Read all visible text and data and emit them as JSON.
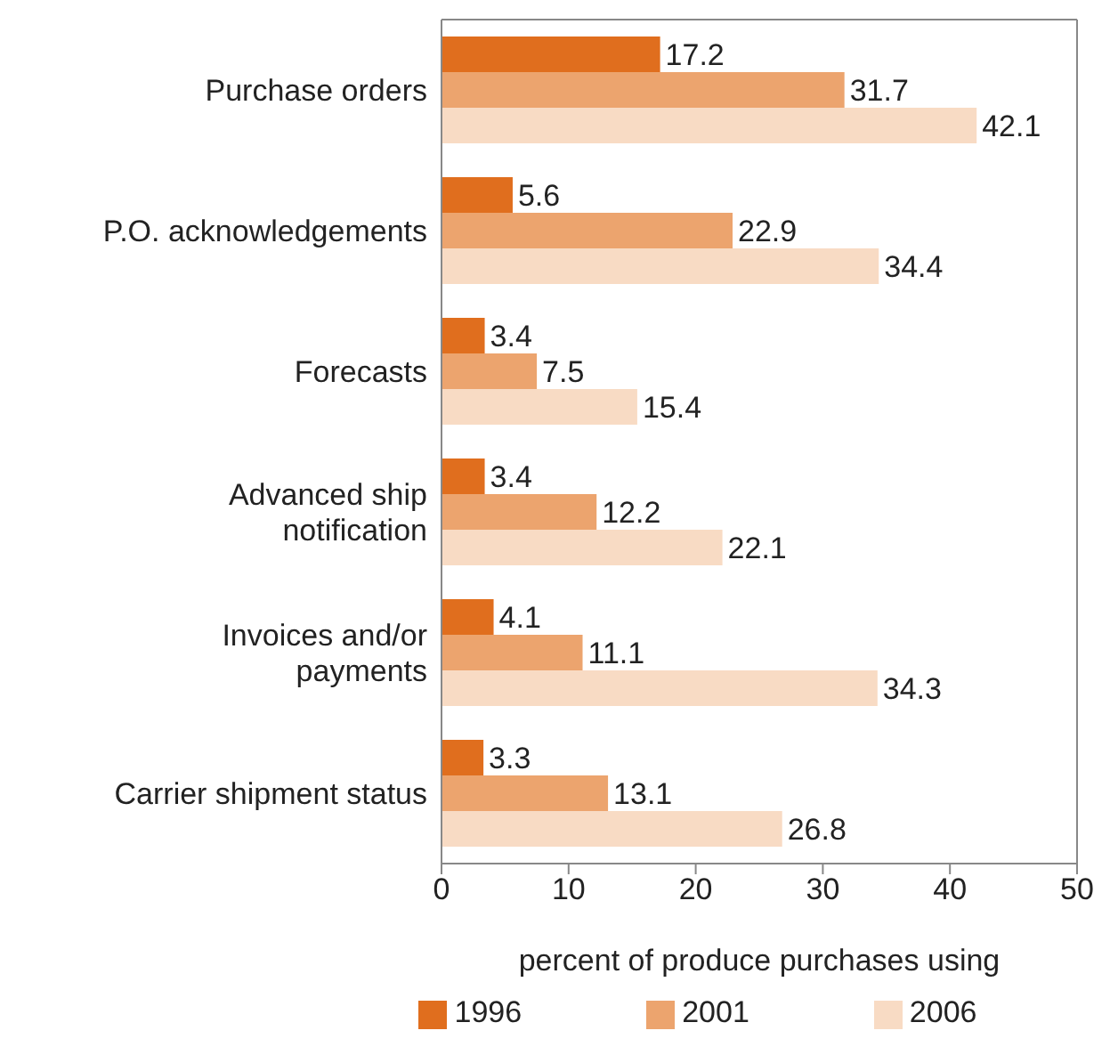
{
  "chart_data": {
    "type": "bar",
    "orientation": "horizontal",
    "categories": [
      "Purchase orders",
      "P.O. acknowledgements",
      "Forecasts",
      "Advanced ship\nnotification",
      "Invoices and/or\npayments",
      "Carrier shipment status"
    ],
    "series": [
      {
        "name": "1996",
        "color": "#e06e1e",
        "values": [
          17.2,
          5.6,
          3.4,
          3.4,
          4.1,
          3.3
        ]
      },
      {
        "name": "2001",
        "color": "#eca46e",
        "values": [
          31.7,
          22.9,
          7.5,
          12.2,
          11.1,
          13.1
        ]
      },
      {
        "name": "2006",
        "color": "#f8dbc4",
        "values": [
          42.1,
          34.4,
          15.4,
          22.1,
          34.3,
          26.8
        ]
      }
    ],
    "xlabel": "percent of produce purchases using",
    "xlim": [
      0,
      50
    ],
    "xticks": [
      0,
      10,
      20,
      30,
      40,
      50
    ],
    "grid": false,
    "legend": "bottom",
    "data_labels": true
  }
}
